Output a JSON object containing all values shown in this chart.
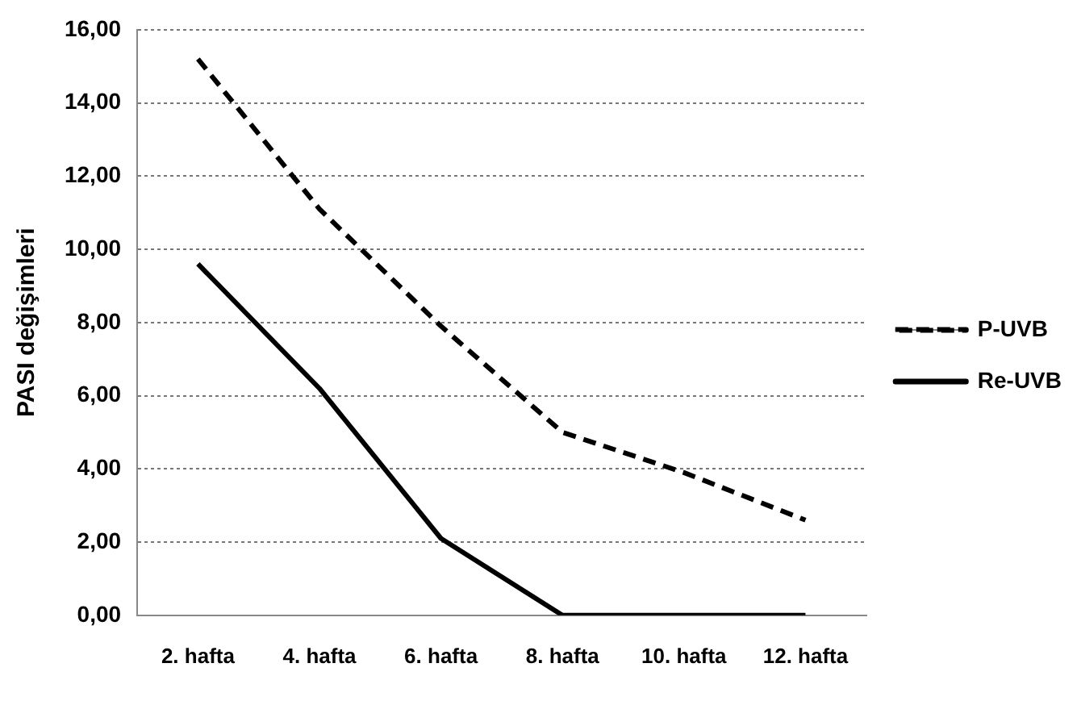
{
  "chart_data": {
    "type": "line",
    "ylabel": "PASI değişimleri",
    "categories": [
      "2. hafta",
      "4. hafta",
      "6. hafta",
      "8. hafta",
      "10. hafta",
      "12. hafta"
    ],
    "series": [
      {
        "name": "P-UVB",
        "color": "#000000",
        "line_style": "dashed",
        "values": [
          15.2,
          11.1,
          7.9,
          5.0,
          3.9,
          2.6
        ]
      },
      {
        "name": "Re-UVB",
        "color": "#000000",
        "line_style": "solid",
        "values": [
          9.6,
          6.2,
          2.1,
          0,
          0,
          0
        ]
      }
    ],
    "ylim": [
      0,
      16
    ],
    "yticks": [
      {
        "value": 0,
        "label": "0,00"
      },
      {
        "value": 2,
        "label": "2,00"
      },
      {
        "value": 4,
        "label": "4,00"
      },
      {
        "value": 6,
        "label": "6,00"
      },
      {
        "value": 8,
        "label": "8,00"
      },
      {
        "value": 10,
        "label": "10,00"
      },
      {
        "value": 12,
        "label": "12,00"
      },
      {
        "value": 14,
        "label": "14,00"
      },
      {
        "value": 16,
        "label": "16,00"
      }
    ],
    "grid": "y",
    "legend": "right",
    "marker": "none"
  }
}
